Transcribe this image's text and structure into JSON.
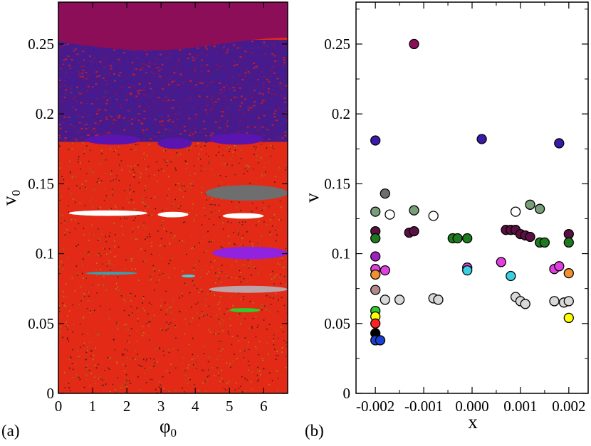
{
  "figure": {
    "panel_labels": [
      "(a)",
      "(b)"
    ]
  },
  "chart_data": [
    {
      "type": "heatmap",
      "panel": "(a)",
      "xlabel": "φ",
      "xlabel_sub": "0",
      "ylabel": "v",
      "ylabel_sub": "0",
      "xlim": [
        0,
        6.7
      ],
      "ylim": [
        0,
        0.28
      ],
      "xticks": [
        0,
        1,
        2,
        3,
        4,
        5,
        6
      ],
      "yticks": [
        0,
        0.05,
        0.1,
        0.15,
        0.2,
        0.25
      ],
      "ytick_labels": [
        "0",
        "0.05",
        "0.1",
        "0.15",
        "0.2",
        "0.25"
      ],
      "background_color": "#e32a16",
      "top_band": {
        "color": "#8d0e58",
        "from_v": 0.25
      },
      "chaotic_band": {
        "colors": [
          "#3a1aa8",
          "#7a1660",
          "#b81f33",
          "#2a2a9a"
        ],
        "from_v": 0.18,
        "to_v": 0.25
      },
      "noise_colors": [
        "#1a1a1a",
        "#6b8f1a",
        "#c44a12",
        "#2a2a2a",
        "#9aa318"
      ],
      "regions": [
        {
          "color": "#5a14b0",
          "phi": [
            0.8,
            2.4
          ],
          "v": [
            0.178,
            0.185
          ]
        },
        {
          "color": "#5a14b0",
          "phi": [
            2.9,
            3.9
          ],
          "v": [
            0.175,
            0.183
          ]
        },
        {
          "color": "#5a14b0",
          "phi": [
            4.4,
            6.0
          ],
          "v": [
            0.178,
            0.186
          ]
        },
        {
          "color": "#6e6e6e",
          "phi": [
            4.3,
            6.7
          ],
          "v": [
            0.138,
            0.149
          ]
        },
        {
          "color": "#ffffff",
          "phi": [
            0.3,
            2.6
          ],
          "v": [
            0.127,
            0.131
          ]
        },
        {
          "color": "#ffffff",
          "phi": [
            2.9,
            3.8
          ],
          "v": [
            0.126,
            0.13
          ]
        },
        {
          "color": "#ffffff",
          "phi": [
            4.8,
            6.0
          ],
          "v": [
            0.125,
            0.129
          ]
        },
        {
          "color": "#9022e0",
          "phi": [
            4.5,
            6.7
          ],
          "v": [
            0.096,
            0.105
          ]
        },
        {
          "color": "#3aa0b0",
          "phi": [
            0.8,
            2.3
          ],
          "v": [
            0.085,
            0.087
          ]
        },
        {
          "color": "#3ad0e0",
          "phi": [
            3.6,
            4.0
          ],
          "v": [
            0.083,
            0.085
          ]
        },
        {
          "color": "#bda2a8",
          "phi": [
            4.4,
            6.7
          ],
          "v": [
            0.072,
            0.077
          ]
        },
        {
          "color": "#2ecc2e",
          "phi": [
            5.0,
            5.9
          ],
          "v": [
            0.058,
            0.061
          ]
        }
      ]
    },
    {
      "type": "scatter",
      "panel": "(b)",
      "xlabel": "x",
      "ylabel": "v",
      "xlim": [
        -0.0024,
        0.0024
      ],
      "ylim": [
        0,
        0.28
      ],
      "xticks": [
        -0.002,
        -0.001,
        0.0,
        0.001,
        0.002
      ],
      "xtick_labels": [
        "-0.002",
        "-0.001",
        "0.000",
        "0.001",
        "0.002"
      ],
      "yticks": [
        0,
        0.05,
        0.1,
        0.15,
        0.2,
        0.25
      ],
      "ytick_labels": [
        "0",
        "0.05",
        "0.1",
        "0.15",
        "0.2",
        "0.25"
      ],
      "points": [
        {
          "x": -0.0012,
          "y": 0.25,
          "color": "#8d0e58"
        },
        {
          "x": -0.002,
          "y": 0.181,
          "color": "#3a1aa8"
        },
        {
          "x": 0.0002,
          "y": 0.182,
          "color": "#3a1aa8"
        },
        {
          "x": 0.0018,
          "y": 0.179,
          "color": "#3a1aa8"
        },
        {
          "x": -0.0018,
          "y": 0.143,
          "color": "#6e6e6e"
        },
        {
          "x": -0.002,
          "y": 0.13,
          "color": "#7a9e7a"
        },
        {
          "x": -0.0012,
          "y": 0.131,
          "color": "#7a9e7a"
        },
        {
          "x": 0.0012,
          "y": 0.135,
          "color": "#7a9e7a"
        },
        {
          "x": 0.0014,
          "y": 0.132,
          "color": "#7a9e7a"
        },
        {
          "x": -0.0017,
          "y": 0.128,
          "color": "#ffffff"
        },
        {
          "x": -0.0008,
          "y": 0.127,
          "color": "#ffffff"
        },
        {
          "x": 0.0009,
          "y": 0.13,
          "color": "#ffffff"
        },
        {
          "x": -0.002,
          "y": 0.116,
          "color": "#5a1040"
        },
        {
          "x": -0.0013,
          "y": 0.115,
          "color": "#5a1040"
        },
        {
          "x": -0.0012,
          "y": 0.116,
          "color": "#5a1040"
        },
        {
          "x": 0.0007,
          "y": 0.117,
          "color": "#5a1040"
        },
        {
          "x": 0.0008,
          "y": 0.117,
          "color": "#5a1040"
        },
        {
          "x": 0.0009,
          "y": 0.117,
          "color": "#5a1040"
        },
        {
          "x": 0.001,
          "y": 0.114,
          "color": "#5a1040"
        },
        {
          "x": 0.0011,
          "y": 0.113,
          "color": "#5a1040"
        },
        {
          "x": 0.0012,
          "y": 0.112,
          "color": "#5a1040"
        },
        {
          "x": 0.002,
          "y": 0.114,
          "color": "#5a1040"
        },
        {
          "x": -0.002,
          "y": 0.111,
          "color": "#1e7a1e"
        },
        {
          "x": -0.0004,
          "y": 0.111,
          "color": "#1e7a1e"
        },
        {
          "x": -0.0003,
          "y": 0.111,
          "color": "#1e7a1e"
        },
        {
          "x": -0.0001,
          "y": 0.111,
          "color": "#1e7a1e"
        },
        {
          "x": 0.0014,
          "y": 0.108,
          "color": "#1e7a1e"
        },
        {
          "x": 0.0015,
          "y": 0.108,
          "color": "#1e7a1e"
        },
        {
          "x": 0.002,
          "y": 0.108,
          "color": "#1e7a1e"
        },
        {
          "x": -0.002,
          "y": 0.098,
          "color": "#a020c0"
        },
        {
          "x": -0.002,
          "y": 0.089,
          "color": "#e040e0"
        },
        {
          "x": -0.0018,
          "y": 0.088,
          "color": "#e040e0"
        },
        {
          "x": -0.0001,
          "y": 0.09,
          "color": "#e040e0"
        },
        {
          "x": 0.0006,
          "y": 0.094,
          "color": "#e040e0"
        },
        {
          "x": 0.0017,
          "y": 0.089,
          "color": "#e040e0"
        },
        {
          "x": 0.0018,
          "y": 0.091,
          "color": "#e040e0"
        },
        {
          "x": -0.0001,
          "y": 0.088,
          "color": "#3ad0e0"
        },
        {
          "x": 0.0008,
          "y": 0.084,
          "color": "#3ad0e0"
        },
        {
          "x": -0.002,
          "y": 0.085,
          "color": "#f09030"
        },
        {
          "x": 0.002,
          "y": 0.086,
          "color": "#f09030"
        },
        {
          "x": -0.002,
          "y": 0.074,
          "color": "#b08a8a"
        },
        {
          "x": -0.0018,
          "y": 0.067,
          "color": "#d8d8d8"
        },
        {
          "x": -0.0015,
          "y": 0.067,
          "color": "#d8d8d8"
        },
        {
          "x": -0.0008,
          "y": 0.068,
          "color": "#d8d8d8"
        },
        {
          "x": -0.0007,
          "y": 0.067,
          "color": "#d8d8d8"
        },
        {
          "x": 0.0009,
          "y": 0.069,
          "color": "#d8d8d8"
        },
        {
          "x": 0.001,
          "y": 0.066,
          "color": "#d8d8d8"
        },
        {
          "x": 0.0011,
          "y": 0.064,
          "color": "#d8d8d8"
        },
        {
          "x": 0.0017,
          "y": 0.066,
          "color": "#d8d8d8"
        },
        {
          "x": 0.0019,
          "y": 0.065,
          "color": "#d8d8d8"
        },
        {
          "x": 0.002,
          "y": 0.066,
          "color": "#d8d8d8"
        },
        {
          "x": -0.002,
          "y": 0.059,
          "color": "#2ecc2e"
        },
        {
          "x": -0.002,
          "y": 0.055,
          "color": "#ffff00"
        },
        {
          "x": 0.002,
          "y": 0.054,
          "color": "#ffff00"
        },
        {
          "x": -0.002,
          "y": 0.05,
          "color": "#ff2020"
        },
        {
          "x": -0.002,
          "y": 0.043,
          "color": "#000000"
        },
        {
          "x": -0.002,
          "y": 0.038,
          "color": "#1a40d0"
        },
        {
          "x": -0.0019,
          "y": 0.038,
          "color": "#1a40d0"
        }
      ]
    }
  ]
}
